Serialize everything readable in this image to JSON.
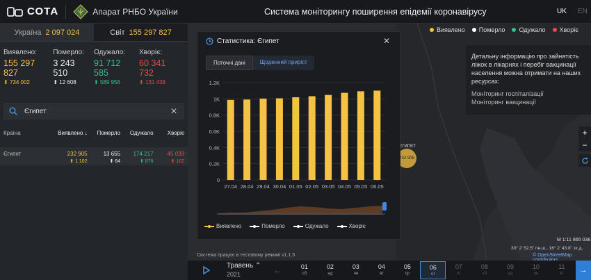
{
  "header": {
    "logo_text": "СОТА",
    "org": "Апарат РНБО України",
    "title": "Система моніторингу поширення епідемії коронавірусу",
    "lang_active": "UK",
    "lang_other": "EN"
  },
  "totals": {
    "ukraine_label": "Україна",
    "ukraine_value": "2 097 024",
    "world_label": "Світ",
    "world_value": "155 297 827"
  },
  "stats": [
    {
      "label": "Виявлено:",
      "value": "155 297 827",
      "delta": "734 002",
      "color": "#f5c342"
    },
    {
      "label": "Померло:",
      "value": "3 243 510",
      "delta": "12 608",
      "color": "#eeeeee"
    },
    {
      "label": "Одужало:",
      "value": "91 712 585",
      "delta": "589 956",
      "color": "#35c08a"
    },
    {
      "label": "Хворіє:",
      "value": "60 341 732",
      "delta": "131 438",
      "color": "#e8494f"
    }
  ],
  "search": {
    "value": "Єгипет"
  },
  "table": {
    "headers": [
      "Країна",
      "Виявлено ↓",
      "Померло",
      "Одужало",
      "Хворіє"
    ],
    "rows": [
      {
        "country": "Єгипет",
        "detected": "232 905",
        "detected_delta": "1 102",
        "died": "13 655",
        "died_delta": "64",
        "recovered": "174 217",
        "recovered_delta": "876",
        "sick": "45 033",
        "sick_delta": "162"
      }
    ]
  },
  "map_legend": [
    "Виявлено",
    "Померло",
    "Одужало",
    "Хворіє"
  ],
  "map_colors": [
    "#f5c342",
    "#ffffff",
    "#35c08a",
    "#e8494f"
  ],
  "info": {
    "text": "Детальну інформацію про зайнятість ліжок в лікарнях і перебіг вакцинації населення можна отримати на наших ресурсах:",
    "link1": "Моніторинг госпіталізації",
    "link2": "Моніторинг вакцинації"
  },
  "map_marker": {
    "label": "ЄГИПЕТ",
    "value": "232 905"
  },
  "map_scale": "M 1:11 865 038",
  "map_coords": "30° 2' 52.5\" пн.ш., 16° 2' 43.8\" зх.д.",
  "osm": "© OpenStreetMap contributors",
  "test_mode": "Система працює в тестовому режимі v1.1.5",
  "modal": {
    "title": "Статистика: Єгипет",
    "tab1": "Поточні дані",
    "tab2": "Щоденний приріст",
    "legend": [
      "Виявлено",
      "Померло",
      "Одужало",
      "Хворіє"
    ]
  },
  "chart_data": {
    "type": "bar",
    "categories": [
      "27.04",
      "28.04",
      "29.04",
      "30.04",
      "01.05",
      "02.05",
      "03.05",
      "04.05",
      "05.05",
      "06.05"
    ],
    "series": [
      {
        "name": "Виявлено",
        "values": [
          987,
          992,
          1004,
          1007,
          1020,
          1033,
          1049,
          1075,
          1094,
          1102
        ],
        "color": "#f5c342"
      }
    ],
    "yticks": [
      "0",
      "0.2K",
      "0.4K",
      "0.6K",
      "0.8K",
      "1K",
      "1.2K"
    ],
    "ylim": [
      0,
      1200
    ],
    "grid": true,
    "title": "",
    "xlabel": "",
    "ylabel": ""
  },
  "timeline": {
    "month": "Травень",
    "year": "2021",
    "days": [
      {
        "d": "01",
        "w": "сб"
      },
      {
        "d": "02",
        "w": "нд"
      },
      {
        "d": "03",
        "w": "пн"
      },
      {
        "d": "04",
        "w": "вт"
      },
      {
        "d": "05",
        "w": "ср"
      },
      {
        "d": "06",
        "w": "чт"
      },
      {
        "d": "07",
        "w": "пт"
      },
      {
        "d": "08",
        "w": "сб"
      },
      {
        "d": "09",
        "w": "нд"
      },
      {
        "d": "10",
        "w": "пн"
      },
      {
        "d": "11",
        "w": "вт"
      }
    ]
  }
}
